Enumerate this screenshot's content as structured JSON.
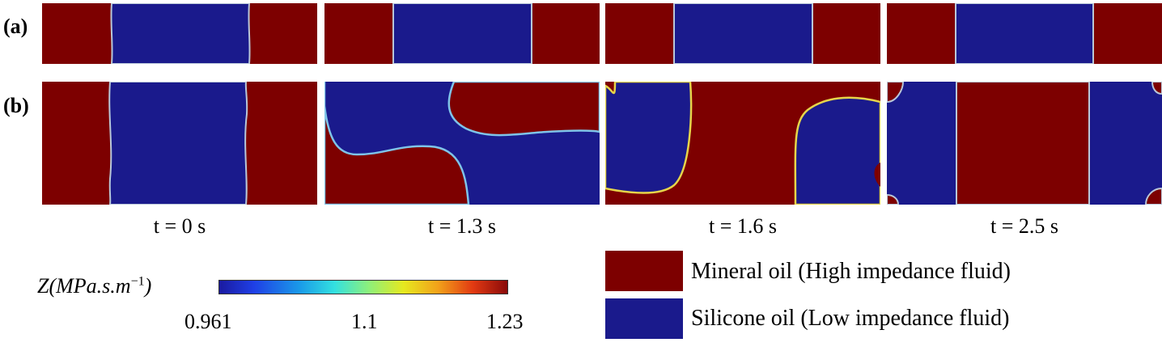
{
  "row_labels": {
    "a": "(a)",
    "b": "(b)"
  },
  "time_labels": [
    "t = 0 s",
    "t = 1.3 s",
    "t = 1.6 s",
    "t = 2.5 s"
  ],
  "colors": {
    "high": "#7d0000",
    "low": "#1a1a8c"
  },
  "legend": {
    "mineral": "Mineral oil (High impedance fluid)",
    "silicone": "Silicone oil (Low impedance fluid)"
  },
  "colorbar": {
    "title": "Z(MPa.s.m",
    "exponent": "−1",
    "title_close": ")",
    "ticks": [
      "0.961",
      "1.1",
      "1.23"
    ]
  }
}
